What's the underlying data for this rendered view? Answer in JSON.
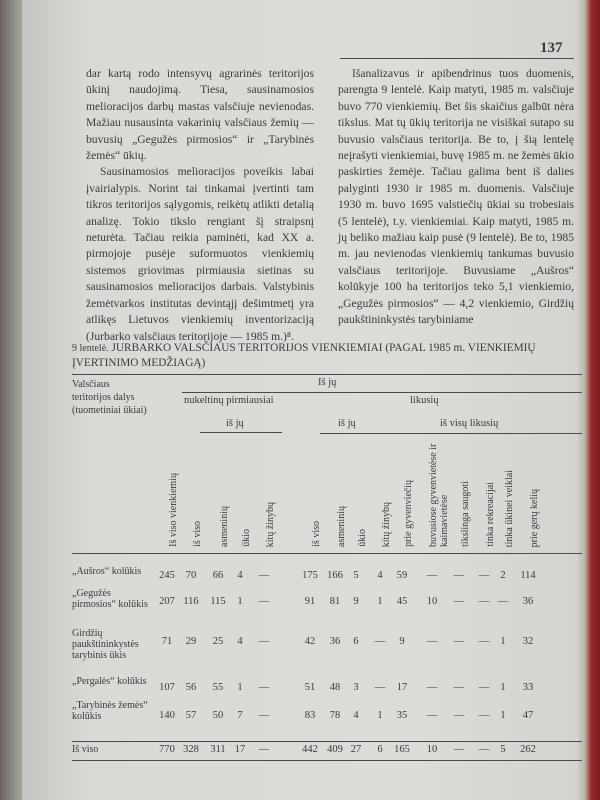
{
  "page_number": "137",
  "left_column": [
    "dar kartą rodo intensyvų agrarinės teritorijos ūkinį naudojimą. Tiesa, sausinamosios melioracijos darbų mastas valsčiuje nevienodas. Mažiau nusausinta vakarinių valsčiaus žemių — buvusių „Gegužės pirmosios“ ir „Tarybinės žemės“ ūkių.",
    "Sausinamosios melioracijos poveikis labai įvairialypis. Norint tai tinkamai įvertinti tam tikros teritorijos sąlygomis, reikėtų atlikti detalią analizę. Tokio tikslo rengiant šį straipsnį neturėta. Tačiau reikia paminėti, kad XX a. pirmojoje pusėje suformuotos vienkiemių sistemos griovimas pirmiausia sietinas su sausinamosios melioracijos darbais. Valstybinis žemėtvarkos institutas devintąjį dešimtmetį yra atlikęs Lietuvos vienkiemių inventorizaciją (Jurbarko valsčiaus teritorijoje — 1985 m.)⁸."
  ],
  "right_column": [
    "Išanalizavus ir apibendrinus tuos duomenis, parengta 9 lentelė. Kaip matyti, 1985 m. valsčiuje buvo 770 vienkiemių. Bet šis skaičius galbūt nėra tikslus. Mat tų ūkių teritorija ne visiškai sutapo su buvusio valsčiaus teritorija. Be to, į šią lentelę neįrašyti vienkiemiai, buvę 1985 m. ne žemės ūkio paskirties žemėje. Tačiau galima bent iš dalies palyginti 1930 ir 1985 m. duomenis. Valsčiuje 1930 m. buvo 1695 valstiečių ūkiai su trobesiais (5 lentelė), t.y. vienkiemiai. Kaip matyti, 1985 m. jų beliko mažiau kaip pusė (9 lentelė). Be to, 1985 m. jau nevienodas vienkiemių tankumas buvusio valsčiaus teritorijoje. Buvusiame „Aušros“ kolūkyje 100 ha teritorijos teko 5,1 vienkiemio, „Gegužės pirmosios“ — 4,2 vienkiemio, Girdžių paukštininkystės tarybiniame"
  ],
  "table": {
    "label": "9 lentelė.",
    "title": "JURBARKO VALSČIAUS TERITORIJOS VIENKIEMIAI (PAGAL 1985 m. VIENKIEMIŲ ĮVERTINIMO MEDŽIAGĄ)",
    "stub_header": "Valsčiaus teritorijos dalys (tuometiniai ūkiai)",
    "group_is_ju": "Iš jų",
    "group_nukeltinu": "nukeltinų pirmiausiai",
    "group_likusiu": "likusių",
    "sub_is_ju_1": "iš jų",
    "sub_is_ju_2": "iš jų",
    "sub_is_visu_likusiu": "iš visų likusių",
    "columns": [
      "Iš viso vienkiemių",
      "iš viso",
      "asmeninių",
      "ūkio",
      "kitų žinybų",
      "iš viso",
      "asmeninių",
      "ūkio",
      "kitų žinybų",
      "prie gyvenviečių",
      "buvusiose gyvenvietėse ir kaimavietėse",
      "tikslinga saugoti",
      "tinka rekreacijai",
      "tinka ūkinei veiklai",
      "prie gerų kelių"
    ],
    "rows": [
      {
        "name": "„Aušros“ kolūkis",
        "values": [
          "245",
          "70",
          "66",
          "4",
          "—",
          "175",
          "166",
          "5",
          "4",
          "59",
          "—",
          "—",
          "—",
          "2",
          "114"
        ]
      },
      {
        "name": "„Gegužės pirmosios“ kolūkis",
        "values": [
          "207",
          "116",
          "115",
          "1",
          "—",
          "91",
          "81",
          "9",
          "1",
          "45",
          "10",
          "—",
          "—",
          "—",
          "36"
        ]
      },
      {
        "name": "Girdžių paukštininkystės tarybinis ūkis",
        "values": [
          "71",
          "29",
          "25",
          "4",
          "—",
          "42",
          "36",
          "6",
          "—",
          "9",
          "—",
          "—",
          "—",
          "1",
          "32"
        ]
      },
      {
        "name": "„Pergalės“ kolūkis",
        "values": [
          "107",
          "56",
          "55",
          "1",
          "—",
          "51",
          "48",
          "3",
          "—",
          "17",
          "—",
          "—",
          "—",
          "1",
          "33"
        ]
      },
      {
        "name": "„Tarybinės žemės“ kolūkis",
        "values": [
          "140",
          "57",
          "50",
          "7",
          "—",
          "83",
          "78",
          "4",
          "1",
          "35",
          "—",
          "—",
          "—",
          "1",
          "47"
        ]
      },
      {
        "name": "Iš viso",
        "values": [
          "770",
          "328",
          "311",
          "17",
          "—",
          "442",
          "409",
          "27",
          "6",
          "165",
          "10",
          "—",
          "—",
          "5",
          "262"
        ]
      }
    ]
  }
}
